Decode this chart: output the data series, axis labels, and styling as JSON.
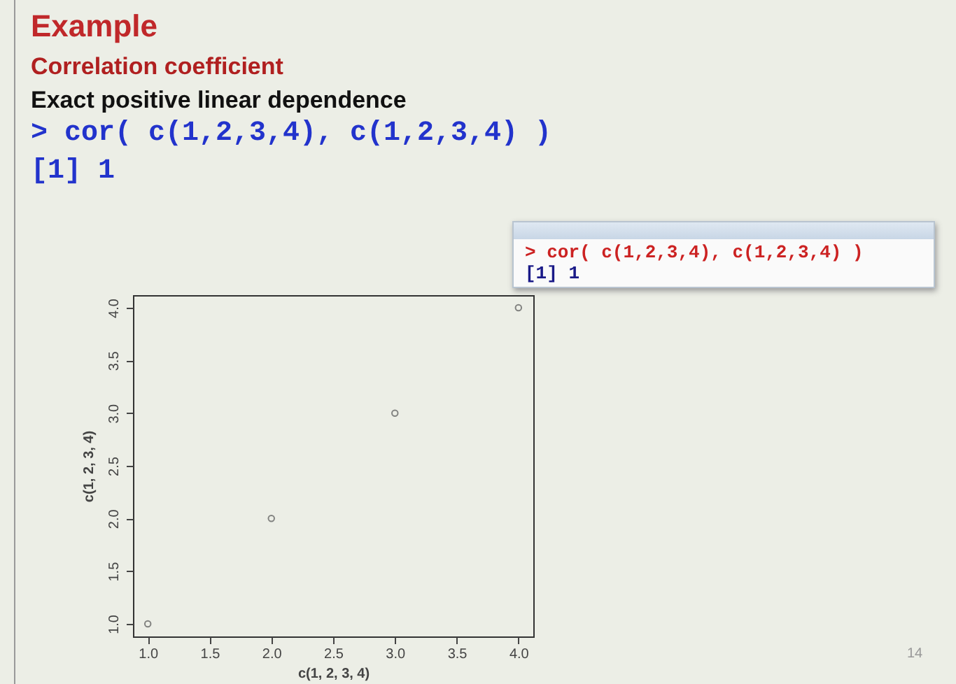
{
  "chart_data": {
    "type": "scatter",
    "title": "Example",
    "subtitle": "Correlation coefficient",
    "annotations": [
      "Exact positive linear dependence",
      "> cor( c(1,2,3,4), c(1,2,3,4) )",
      "[1] 1",
      "> cor( c(1,2,3,4), c(1,2,3,4) )",
      "[1] 1",
      "14"
    ],
    "xlabel": "c(1, 2, 3, 4)",
    "ylabel": "c(1, 2, 3, 4)",
    "x": [
      1,
      2,
      3,
      4
    ],
    "series": [
      {
        "color": "#555555",
        "values": [
          1,
          2,
          3,
          4
        ]
      }
    ],
    "xlim": [
      0.88,
      4.12
    ],
    "ylim": [
      0.88,
      4.12
    ],
    "xticks": [
      {
        "value": 1,
        "label": "1.0"
      },
      {
        "value": 1.5,
        "label": "1.5"
      },
      {
        "value": 2,
        "label": "2.0"
      },
      {
        "value": 2.5,
        "label": "2.5"
      },
      {
        "value": 3,
        "label": "3.0"
      },
      {
        "value": 3.5,
        "label": "3.5"
      },
      {
        "value": 4,
        "label": "4.0"
      }
    ],
    "yticks": [
      {
        "value": 1,
        "label": "1.0"
      },
      {
        "value": 1.5,
        "label": "1.5"
      },
      {
        "value": 2,
        "label": "2.0"
      },
      {
        "value": 2.5,
        "label": "2.5"
      },
      {
        "value": 3,
        "label": "3.0"
      },
      {
        "value": 3.5,
        "label": "3.5"
      },
      {
        "value": 4,
        "label": "4.0"
      }
    ],
    "grid": false
  }
}
